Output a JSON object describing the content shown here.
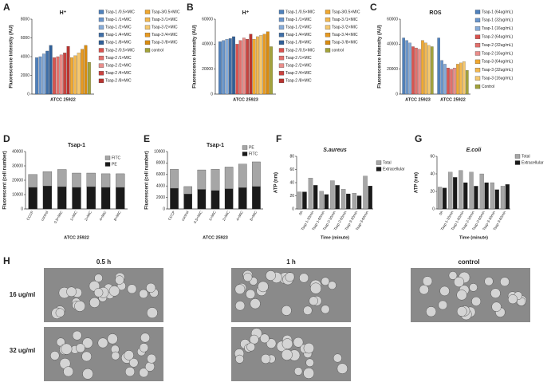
{
  "chart_data": [
    {
      "type": "bar",
      "panel": "A",
      "title": "H⁺",
      "ylabel": "Fluorescence intensity (AU)",
      "categories": [
        "ATCC 25922"
      ],
      "ylim": [
        0,
        8000
      ],
      "yticks": [
        0,
        2000,
        4000,
        6000,
        8000
      ],
      "series": [
        {
          "name": "Tsap-1 /0.5×MIC",
          "color": "#4f81bd",
          "values": [
            3900
          ]
        },
        {
          "name": "Tsap-1 /1×MIC",
          "color": "#6a96cc",
          "values": [
            4000
          ]
        },
        {
          "name": "Tsap-1 /2×MIC",
          "color": "#86abd8",
          "values": [
            4300
          ]
        },
        {
          "name": "Tsap-1 /4×MIC",
          "color": "#3f6fa8",
          "values": [
            4600
          ]
        },
        {
          "name": "Tsap-1 /8×MIC",
          "color": "#2f5f98",
          "values": [
            5200
          ]
        },
        {
          "name": "Tsap-2 /0.5×MIC",
          "color": "#d9534f",
          "values": [
            3900
          ]
        },
        {
          "name": "Tsap-2 /1×MIC",
          "color": "#e2706c",
          "values": [
            4000
          ]
        },
        {
          "name": "Tsap-2 /2×MIC",
          "color": "#ea8d8a",
          "values": [
            4200
          ]
        },
        {
          "name": "Tsap-2 /4×MIC",
          "color": "#c9433f",
          "values": [
            4400
          ]
        },
        {
          "name": "Tsap-2 /8×MIC",
          "color": "#b8332f",
          "values": [
            5100
          ]
        },
        {
          "name": "Tsap-3/0.5×MIC",
          "color": "#f0a830",
          "values": [
            3900
          ]
        },
        {
          "name": "Tsap-3 /1×MIC",
          "color": "#f3b84f",
          "values": [
            4100
          ]
        },
        {
          "name": "Tsap-3 /2×MIC",
          "color": "#f6c86e",
          "values": [
            4400
          ]
        },
        {
          "name": "Tsap-3 /4×MIC",
          "color": "#e89a20",
          "values": [
            4800
          ]
        },
        {
          "name": "Tsap-3 /8×MIC",
          "color": "#d98c10",
          "values": [
            5200
          ]
        },
        {
          "name": "control",
          "color": "#a3a33a",
          "values": [
            3400
          ]
        }
      ]
    },
    {
      "type": "bar",
      "panel": "B",
      "title": "H⁺",
      "ylabel": "Fluorescence intensity (AU)",
      "categories": [
        "ATCC 25923"
      ],
      "ylim": [
        0,
        60000
      ],
      "yticks": [
        0,
        20000,
        40000,
        60000
      ],
      "series": [
        {
          "name": "Tsap-1 /0.5×MIC",
          "color": "#4f81bd",
          "values": [
            42000
          ]
        },
        {
          "name": "Tsap-1 /1×MIC",
          "color": "#6a96cc",
          "values": [
            43000
          ]
        },
        {
          "name": "Tsap-1 /2×MIC",
          "color": "#86abd8",
          "values": [
            44000
          ]
        },
        {
          "name": "Tsap-1 /4×MIC",
          "color": "#3f6fa8",
          "values": [
            44500
          ]
        },
        {
          "name": "Tsap-1 /8×MIC",
          "color": "#2f5f98",
          "values": [
            46000
          ]
        },
        {
          "name": "Tsap-2 /0.5×MIC",
          "color": "#d9534f",
          "values": [
            40000
          ]
        },
        {
          "name": "Tsap-2 /1×MIC",
          "color": "#e2706c",
          "values": [
            43000
          ]
        },
        {
          "name": "Tsap-2 /2×MIC",
          "color": "#ea8d8a",
          "values": [
            45000
          ]
        },
        {
          "name": "Tsap-2 /4×MIC",
          "color": "#c9433f",
          "values": [
            44000
          ]
        },
        {
          "name": "Tsap-2 /8×MIC",
          "color": "#b8332f",
          "values": [
            48000
          ]
        },
        {
          "name": "Tsap-3/0.5×MIC",
          "color": "#f0a830",
          "values": [
            44000
          ]
        },
        {
          "name": "Tsap-3 /1×MIC",
          "color": "#f3b84f",
          "values": [
            46000
          ]
        },
        {
          "name": "Tsap-3 /2×MIC",
          "color": "#f6c86e",
          "values": [
            47000
          ]
        },
        {
          "name": "Tsap-3 /4×MIC",
          "color": "#e89a20",
          "values": [
            48000
          ]
        },
        {
          "name": "Tsap-3 /8×MIC",
          "color": "#d98c10",
          "values": [
            50000
          ]
        },
        {
          "name": "control",
          "color": "#a3a33a",
          "values": [
            38000
          ]
        }
      ]
    },
    {
      "type": "bar",
      "panel": "C",
      "title": "ROS",
      "ylabel": "Fluorescence intensity (AU)",
      "categories": [
        "ATCC 25923",
        "ATCC 25922"
      ],
      "ylim": [
        0,
        60000
      ],
      "yticks": [
        0,
        20000,
        40000,
        60000
      ],
      "series": [
        {
          "name": "Tsap-1 (64ug/mL)",
          "color": "#4f81bd",
          "values": [
            45000,
            45000
          ]
        },
        {
          "name": "Tsap-1 (32ug/mL)",
          "color": "#6a96cc",
          "values": [
            43000,
            27000
          ]
        },
        {
          "name": "Tsap-1 (16ug/mL)",
          "color": "#86abd8",
          "values": [
            41000,
            24000
          ]
        },
        {
          "name": "Tsap-2 (64ug/mL)",
          "color": "#d9534f",
          "values": [
            38000,
            21000
          ]
        },
        {
          "name": "Tsap-2 (32ug/mL)",
          "color": "#e2706c",
          "values": [
            37000,
            20000
          ]
        },
        {
          "name": "Tsap-2 (16ug/mL)",
          "color": "#ea8d8a",
          "values": [
            36000,
            21000
          ]
        },
        {
          "name": "Tsap-3 (64ug/mL)",
          "color": "#f0a830",
          "values": [
            43000,
            24000
          ]
        },
        {
          "name": "Tsap-3 (32ug/mL)",
          "color": "#f3b84f",
          "values": [
            41000,
            25000
          ]
        },
        {
          "name": "Tsap-3 (16ug/mL)",
          "color": "#f6c86e",
          "values": [
            39000,
            26000
          ]
        },
        {
          "name": "Control",
          "color": "#a3a33a",
          "values": [
            38000,
            19000
          ]
        }
      ]
    },
    {
      "type": "stacked_bar",
      "panel": "D",
      "title": "Tsap-1",
      "ylabel": "Fluorescent (cell number)",
      "xlabel": "ATCC 25922",
      "categories": [
        "CCCP",
        "control",
        "0.5×MIC",
        "1×MIC",
        "2×MIC",
        "4×MIC",
        "8×MIC"
      ],
      "ylim": [
        0,
        40000
      ],
      "yticks": [
        0,
        10000,
        20000,
        30000,
        40000
      ],
      "series": [
        {
          "name": "PE",
          "color": "#1a1a1a",
          "values": [
            15000,
            16000,
            15500,
            15000,
            15500,
            15000,
            15000
          ]
        },
        {
          "name": "FITC",
          "color": "#a6a6a6",
          "values": [
            9000,
            10000,
            12000,
            10000,
            9500,
            9500,
            9500
          ]
        }
      ]
    },
    {
      "type": "stacked_bar",
      "panel": "E",
      "title": "Tsap-1",
      "ylabel": "Fluorescent (cell number)",
      "xlabel": "ATCC 25923",
      "categories": [
        "CCCP",
        "control",
        "0.5×MIC",
        "1×MIC",
        "2×MIC",
        "4×MIC",
        "8×MIC"
      ],
      "ylim": [
        0,
        10000
      ],
      "yticks": [
        0,
        2000,
        4000,
        6000,
        8000,
        10000
      ],
      "series": [
        {
          "name": "FITC",
          "color": "#1a1a1a",
          "values": [
            3600,
            2600,
            3400,
            3200,
            3500,
            3700,
            3900
          ]
        },
        {
          "name": "PE",
          "color": "#a6a6a6",
          "values": [
            3300,
            1300,
            3400,
            3700,
            3800,
            4100,
            4300
          ]
        }
      ]
    },
    {
      "type": "bar",
      "panel": "F",
      "title": "S.aureus",
      "ylabel": "ATP (nm)",
      "xlabel": "Time (minute)",
      "categories": [
        "0h",
        "Tsap-1-30min",
        "Tsap-1-60min",
        "Tsap-2-30min",
        "Tsap-2-60min",
        "Tsap-3-30min",
        "Tsap-3-60min"
      ],
      "ylim": [
        0,
        80
      ],
      "yticks": [
        0,
        20,
        40,
        60,
        80
      ],
      "series": [
        {
          "name": "Total",
          "color": "#a6a6a6",
          "values": [
            26,
            47,
            27,
            43,
            30,
            24,
            50
          ]
        },
        {
          "name": "Extracellular",
          "color": "#1a1a1a",
          "values": [
            26,
            36,
            22,
            36,
            23,
            20,
            35
          ]
        }
      ]
    },
    {
      "type": "bar",
      "panel": "G",
      "title": "E.coli",
      "ylabel": "ATP (nm)",
      "xlabel": "Time (minute)",
      "categories": [
        "0h",
        "Tsap-1-30min",
        "Tsap-1-60min",
        "Tsap-2-30min",
        "Tsap-2-60min",
        "Tsap-3-30min",
        "Tsap-3-60min"
      ],
      "ylim": [
        0,
        60
      ],
      "yticks": [
        0,
        20,
        40,
        60
      ],
      "series": [
        {
          "name": "Total",
          "color": "#a6a6a6",
          "values": [
            25,
            42,
            44,
            42,
            40,
            30,
            26
          ]
        },
        {
          "name": "Extracellular",
          "color": "#1a1a1a",
          "values": [
            24,
            36,
            30,
            26,
            30,
            22,
            28
          ]
        }
      ]
    }
  ],
  "image_grid": {
    "panel": "H",
    "columns": [
      "0.5 h",
      "1 h",
      "control"
    ],
    "rows": [
      "16 ug/ml",
      "32 ug/ml"
    ]
  }
}
